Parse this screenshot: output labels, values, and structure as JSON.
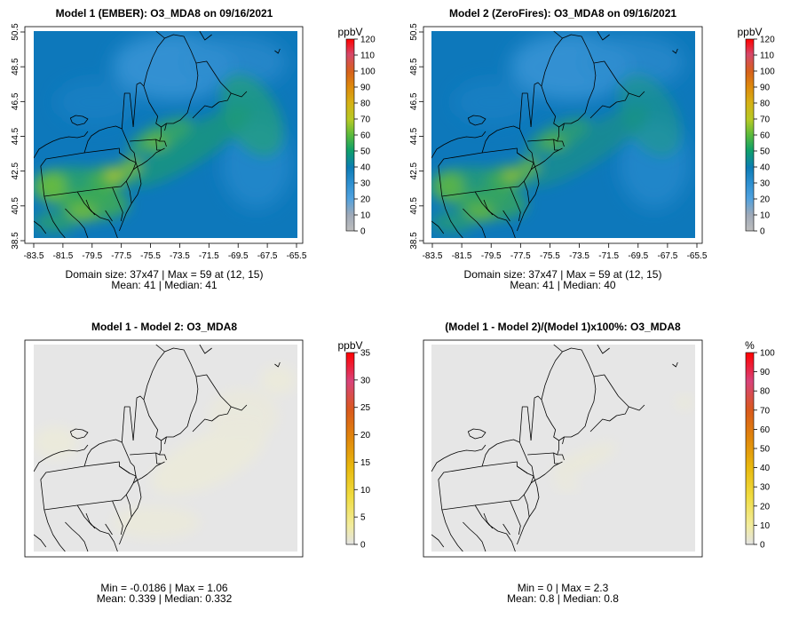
{
  "chart_data": [
    {
      "type": "heatmap",
      "title": "Model 1 (EMBER): O3_MDA8 on 09/16/2021",
      "x_ticks": [
        "-83.5",
        "-81.5",
        "-79.5",
        "-77.5",
        "-75.5",
        "-73.5",
        "-71.5",
        "-69.5",
        "-67.5",
        "-65.5"
      ],
      "y_ticks": [
        "38.5",
        "40.5",
        "42.5",
        "44.5",
        "46.5",
        "48.5",
        "50.5"
      ],
      "xlim": [
        -84.2,
        -65.5
      ],
      "ylim": [
        38.3,
        50.6
      ],
      "colorbar": {
        "unit": "ppbV",
        "ticks": [
          "0",
          "10",
          "20",
          "30",
          "40",
          "50",
          "60",
          "70",
          "80",
          "90",
          "100",
          "110",
          "120"
        ],
        "range": [
          0,
          120
        ],
        "scale": "concentration"
      },
      "field": "ember",
      "stats": [
        "Domain size: 37x47 | Max = 59 at (12, 15)",
        "Mean: 41 |  Median: 41"
      ]
    },
    {
      "type": "heatmap",
      "title": "Model 2 (ZeroFires): O3_MDA8 on 09/16/2021",
      "x_ticks": [
        "-83.5",
        "-81.5",
        "-79.5",
        "-77.5",
        "-75.5",
        "-73.5",
        "-71.5",
        "-69.5",
        "-67.5",
        "-65.5"
      ],
      "y_ticks": [
        "38.5",
        "40.5",
        "42.5",
        "44.5",
        "46.5",
        "48.5",
        "50.5"
      ],
      "xlim": [
        -84.2,
        -65.5
      ],
      "ylim": [
        38.3,
        50.6
      ],
      "colorbar": {
        "unit": "ppbV",
        "ticks": [
          "0",
          "10",
          "20",
          "30",
          "40",
          "50",
          "60",
          "70",
          "80",
          "90",
          "100",
          "110",
          "120"
        ],
        "range": [
          0,
          120
        ],
        "scale": "concentration"
      },
      "field": "zerofires",
      "stats": [
        "Domain size: 37x47 | Max = 59 at (12, 15)",
        "Mean: 41 |  Median: 40"
      ]
    },
    {
      "type": "heatmap",
      "title": "Model 1 - Model 2: O3_MDA8",
      "colorbar": {
        "unit": "ppbV",
        "ticks": [
          "0",
          "5",
          "10",
          "15",
          "20",
          "25",
          "30",
          "35"
        ],
        "range": [
          0,
          35
        ],
        "scale": "difference"
      },
      "field": "diff",
      "stats": [
        "Min = -0.0186 | Max = 1.06",
        "Mean: 0.339 |  Median: 0.332"
      ]
    },
    {
      "type": "heatmap",
      "title": "(Model 1 - Model 2)/(Model 1)x100%: O3_MDA8",
      "colorbar": {
        "unit": "%",
        "ticks": [
          "0",
          "10",
          "20",
          "30",
          "40",
          "50",
          "60",
          "70",
          "80",
          "90",
          "100"
        ],
        "range": [
          0,
          100
        ],
        "scale": "difference"
      },
      "field": "pct",
      "stats": [
        "Min = 0 | Max = 2.3",
        "Mean: 0.8 |  Median: 0.8"
      ]
    }
  ]
}
